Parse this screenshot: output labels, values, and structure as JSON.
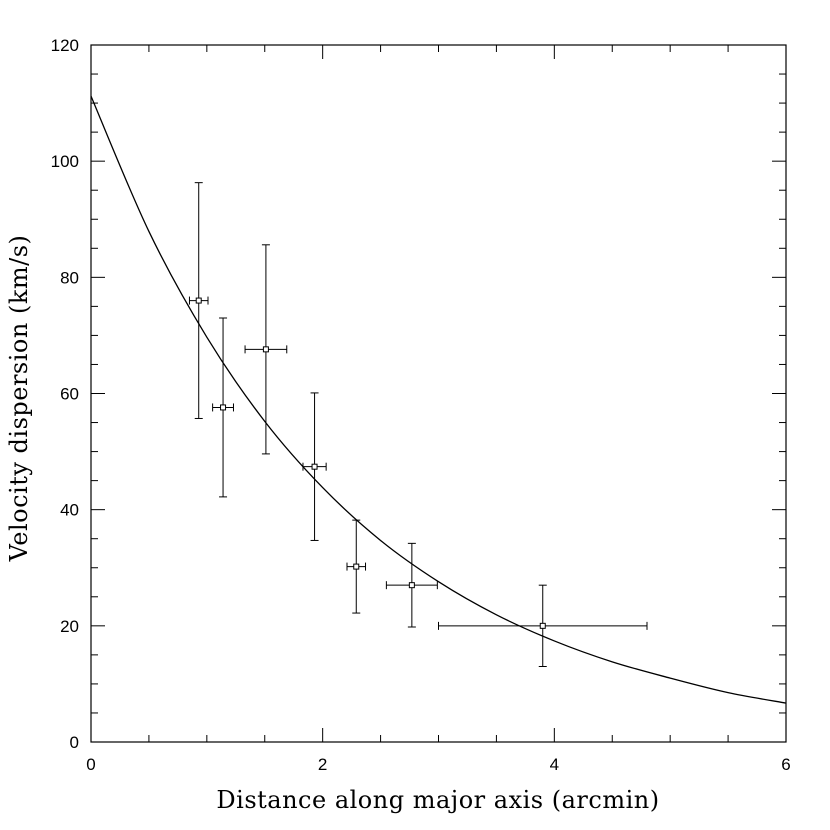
{
  "chart_data": {
    "type": "scatter",
    "title": "",
    "xlabel": "Distance along major axis (arcmin)",
    "ylabel": "Velocity dispersion (km/s)",
    "xlim": [
      0,
      6
    ],
    "ylim": [
      0,
      120
    ],
    "x_ticks": [
      "0",
      "2",
      "4",
      "6"
    ],
    "y_ticks": [
      "0",
      "20",
      "40",
      "60",
      "80",
      "100",
      "120"
    ],
    "grid": false,
    "legend": "none",
    "series": [
      {
        "kind": "points-with-errorbars",
        "marker": "open-square",
        "points": [
          {
            "x": 0.93,
            "y": 76.0,
            "xerr": [
              0.08,
              0.08
            ],
            "yerr": [
              20.3,
              20.3
            ]
          },
          {
            "x": 1.14,
            "y": 57.6,
            "xerr": [
              0.09,
              0.09
            ],
            "yerr": [
              15.4,
              15.4
            ]
          },
          {
            "x": 1.51,
            "y": 67.6,
            "xerr": [
              0.18,
              0.18
            ],
            "yerr": [
              18.0,
              18.0
            ]
          },
          {
            "x": 1.93,
            "y": 47.4,
            "xerr": [
              0.1,
              0.1
            ],
            "yerr": [
              12.7,
              12.7
            ]
          },
          {
            "x": 2.29,
            "y": 30.2,
            "xerr": [
              0.08,
              0.08
            ],
            "yerr": [
              8.0,
              8.0
            ]
          },
          {
            "x": 2.77,
            "y": 27.0,
            "xerr": [
              0.22,
              0.22
            ],
            "yerr": [
              7.2,
              7.2
            ]
          },
          {
            "x": 3.9,
            "y": 20.0,
            "xerr": [
              0.9,
              0.9
            ],
            "yerr": [
              7.0,
              7.0
            ]
          }
        ]
      },
      {
        "kind": "fit-curve",
        "x": [
          0,
          0.5,
          1,
          1.5,
          2,
          2.5,
          3,
          3.5,
          4,
          4.5,
          5,
          5.5,
          6
        ],
        "y": [
          111.2,
          87.9,
          69.7,
          55.2,
          43.8,
          34.7,
          27.6,
          21.9,
          17.4,
          13.8,
          11.0,
          8.5,
          6.7
        ]
      }
    ],
    "colors": {
      "ink": "#000000",
      "background": "#ffffff"
    }
  }
}
